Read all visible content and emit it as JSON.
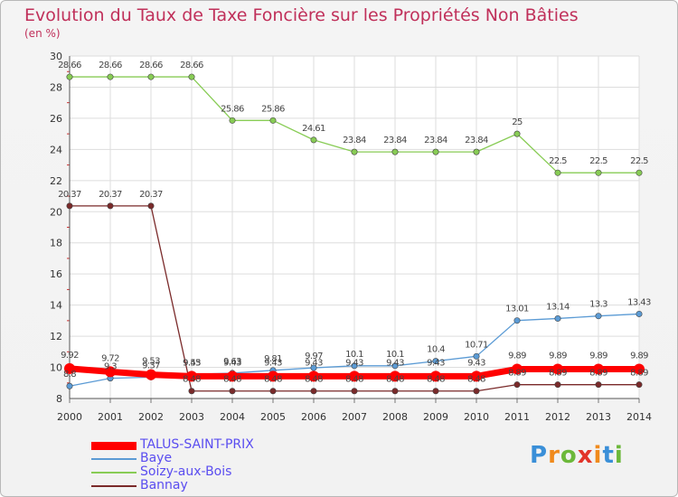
{
  "title": "Evolution du Taux de Taxe Foncière sur les Propriétés Non Bâties",
  "subtitle": "(en %)",
  "logo": "Proxiti",
  "colors": {
    "title": "#c0305a",
    "grid": "#dddddd",
    "legend_text": "#5a4df0"
  },
  "chart_data": {
    "type": "line",
    "title": "Evolution du Taux de Taxe Foncière sur les Propriétés Non Bâties",
    "ylabel": "(en %)",
    "xlabel": "",
    "x": [
      "2000",
      "2001",
      "2002",
      "2003",
      "2004",
      "2005",
      "2006",
      "2007",
      "2008",
      "2009",
      "2010",
      "2011",
      "2012",
      "2013",
      "2014"
    ],
    "ylim": [
      8,
      30
    ],
    "yticks": [
      8,
      10,
      12,
      14,
      16,
      18,
      20,
      22,
      24,
      26,
      28,
      30
    ],
    "grid": true,
    "legend_position": "bottom-left",
    "series": [
      {
        "name": "TALUS-SAINT-PRIX",
        "color": "#ff0000",
        "values": [
          9.92,
          9.72,
          9.53,
          9.43,
          9.43,
          9.43,
          9.43,
          9.43,
          9.43,
          9.43,
          9.43,
          9.89,
          9.89,
          9.89,
          9.89
        ],
        "labels": [
          "9.92",
          "9.72",
          "9.53",
          "9.43",
          "9.43",
          "9.43",
          "9.43",
          "9.43",
          "9.43",
          "9.43",
          "9.43",
          "9.89",
          "9.89",
          "9.89",
          "9.89"
        ]
      },
      {
        "name": "Baye",
        "color": "#5b9bd5",
        "values": [
          8.8,
          9.3,
          9.37,
          9.55,
          9.63,
          9.81,
          9.97,
          10.1,
          10.1,
          10.4,
          10.71,
          13.01,
          13.14,
          13.3,
          13.43
        ],
        "labels": [
          "8.8",
          "9.3",
          "9.37",
          "9.55",
          "9.63",
          "9.81",
          "9.97",
          "10.1",
          "10.1",
          "10.4",
          "10.71",
          "13.01",
          "13.14",
          "13.3",
          "13.43"
        ]
      },
      {
        "name": "Soizy-aux-Bois",
        "color": "#88cc55",
        "values": [
          28.66,
          28.66,
          28.66,
          28.66,
          25.86,
          25.86,
          24.61,
          23.84,
          23.84,
          23.84,
          23.84,
          25,
          22.5,
          22.5,
          22.5
        ],
        "labels": [
          "28.66",
          "28.66",
          "28.66",
          "28.66",
          "25.86",
          "25.86",
          "24.61",
          "23.84",
          "23.84",
          "23.84",
          "23.84",
          "25",
          "22.5",
          "22.5",
          "22.5"
        ]
      },
      {
        "name": "Bannay",
        "color": "#7a2a2a",
        "values": [
          20.37,
          20.37,
          20.37,
          8.48,
          8.48,
          8.48,
          8.48,
          8.48,
          8.48,
          8.48,
          8.48,
          8.89,
          8.89,
          8.89,
          8.89
        ],
        "labels": [
          "20.37",
          "20.37",
          "20.37",
          "8.48",
          "8.48",
          "8.48",
          "8.48",
          "8.48",
          "8.48",
          "8.48",
          "8.48",
          "8.89",
          "8.89",
          "8.89",
          "8.89"
        ]
      }
    ]
  }
}
